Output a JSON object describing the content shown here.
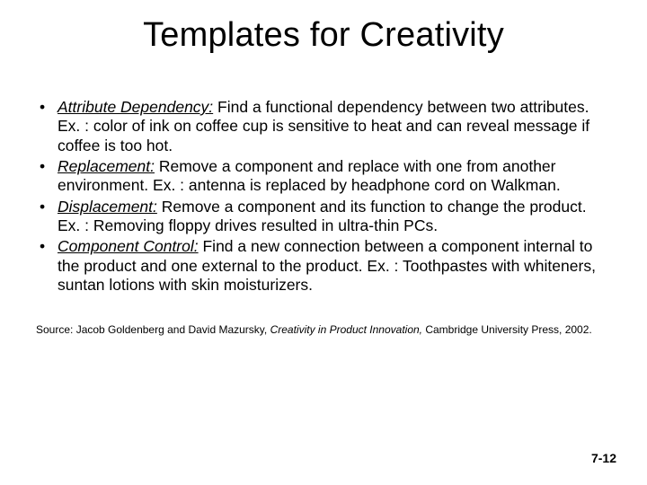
{
  "title": "Templates for Creativity",
  "items": [
    {
      "term": "Attribute Dependency:",
      "text": " Find a functional dependency between two attributes.  Ex. : color of ink on coffee cup is sensitive to heat and can reveal message if coffee is too hot."
    },
    {
      "term": "Replacement:",
      "text": " Remove a component and replace with one from another environment. Ex. : antenna is replaced by headphone cord on Walkman."
    },
    {
      "term": "Displacement:",
      "text": "  Remove a component and its function to change the product. Ex. : Removing floppy drives resulted in ultra-thin PCs."
    },
    {
      "term": "Component Control:",
      "text": " Find a new connection between a component internal to the product and one external to the product.  Ex. : Toothpastes with whiteners, suntan lotions with skin moisturizers."
    }
  ],
  "source": {
    "prefix": "Source: Jacob Goldenberg and David Mazursky, ",
    "book": "Creativity in Product Innovation,",
    "suffix": " Cambridge University Press, 2002."
  },
  "page": "7-12",
  "colors": {
    "bg": "#ffffff",
    "text": "#000000"
  },
  "fonts": {
    "title_size": 38,
    "body_size": 17.5,
    "source_size": 12,
    "page_size": 14
  }
}
